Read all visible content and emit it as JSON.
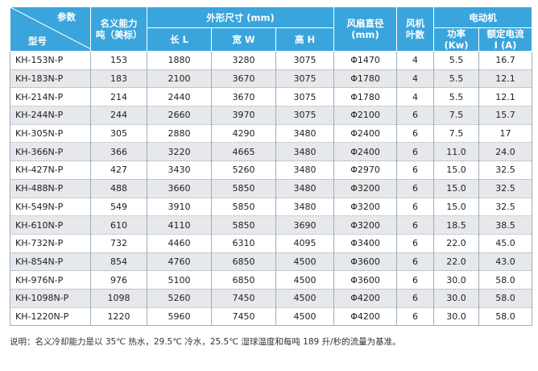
{
  "header": {
    "param_label": "参数",
    "model_label": "型号",
    "capacity_label": "名义能力吨（美标）",
    "dims_group_label": "外形尺寸 (mm)",
    "length_label": "长 L",
    "width_label": "宽 W",
    "height_label": "高 H",
    "fan_diameter_label": "风扇直径 (mm)",
    "blades_label": "风机叶数",
    "motor_group_label": "电动机",
    "power_label": "功率 (Kw)",
    "current_label": "额定电流 I (A)"
  },
  "rows": [
    {
      "model": "KH-153N-P",
      "capacity": "153",
      "length": "1880",
      "width": "3280",
      "height": "3075",
      "fan": "Φ1470",
      "blades": "4",
      "power": "5.5",
      "current": "16.7"
    },
    {
      "model": "KH-183N-P",
      "capacity": "183",
      "length": "2100",
      "width": "3670",
      "height": "3075",
      "fan": "Φ1780",
      "blades": "4",
      "power": "5.5",
      "current": "12.1"
    },
    {
      "model": "KH-214N-P",
      "capacity": "214",
      "length": "2440",
      "width": "3670",
      "height": "3075",
      "fan": "Φ1780",
      "blades": "4",
      "power": "5.5",
      "current": "12.1"
    },
    {
      "model": "KH-244N-P",
      "capacity": "244",
      "length": "2660",
      "width": "3970",
      "height": "3075",
      "fan": "Φ2100",
      "blades": "6",
      "power": "7.5",
      "current": "15.7"
    },
    {
      "model": "KH-305N-P",
      "capacity": "305",
      "length": "2880",
      "width": "4290",
      "height": "3480",
      "fan": "Φ2400",
      "blades": "6",
      "power": "7.5",
      "current": "17"
    },
    {
      "model": "KH-366N-P",
      "capacity": "366",
      "length": "3220",
      "width": "4665",
      "height": "3480",
      "fan": "Φ2400",
      "blades": "6",
      "power": "11.0",
      "current": "24.0"
    },
    {
      "model": "KH-427N-P",
      "capacity": "427",
      "length": "3430",
      "width": "5260",
      "height": "3480",
      "fan": "Φ2970",
      "blades": "6",
      "power": "15.0",
      "current": "32.5"
    },
    {
      "model": "KH-488N-P",
      "capacity": "488",
      "length": "3660",
      "width": "5850",
      "height": "3480",
      "fan": "Φ3200",
      "blades": "6",
      "power": "15.0",
      "current": "32.5"
    },
    {
      "model": "KH-549N-P",
      "capacity": "549",
      "length": "3910",
      "width": "5850",
      "height": "3480",
      "fan": "Φ3200",
      "blades": "6",
      "power": "15.0",
      "current": "32.5"
    },
    {
      "model": "KH-610N-P",
      "capacity": "610",
      "length": "4110",
      "width": "5850",
      "height": "3690",
      "fan": "Φ3200",
      "blades": "6",
      "power": "18.5",
      "current": "38.5"
    },
    {
      "model": "KH-732N-P",
      "capacity": "732",
      "length": "4460",
      "width": "6310",
      "height": "4095",
      "fan": "Φ3400",
      "blades": "6",
      "power": "22.0",
      "current": "45.0"
    },
    {
      "model": "KH-854N-P",
      "capacity": "854",
      "length": "4760",
      "width": "6850",
      "height": "4500",
      "fan": "Φ3600",
      "blades": "6",
      "power": "22.0",
      "current": "43.0"
    },
    {
      "model": "KH-976N-P",
      "capacity": "976",
      "length": "5100",
      "width": "6850",
      "height": "4500",
      "fan": "Φ3600",
      "blades": "6",
      "power": "30.0",
      "current": "58.0"
    },
    {
      "model": "KH-1098N-P",
      "capacity": "1098",
      "length": "5260",
      "width": "7450",
      "height": "4500",
      "fan": "Φ4200",
      "blades": "6",
      "power": "30.0",
      "current": "58.0"
    },
    {
      "model": "KH-1220N-P",
      "capacity": "1220",
      "length": "5960",
      "width": "7450",
      "height": "4500",
      "fan": "Φ4200",
      "blades": "6",
      "power": "30.0",
      "current": "58.0"
    }
  ],
  "note": "说明：名义冷却能力是以 35℃ 热水，29.5℃ 冷水，25.5℃ 湿球温度和每吨 189 升/秒的流量为基准。"
}
